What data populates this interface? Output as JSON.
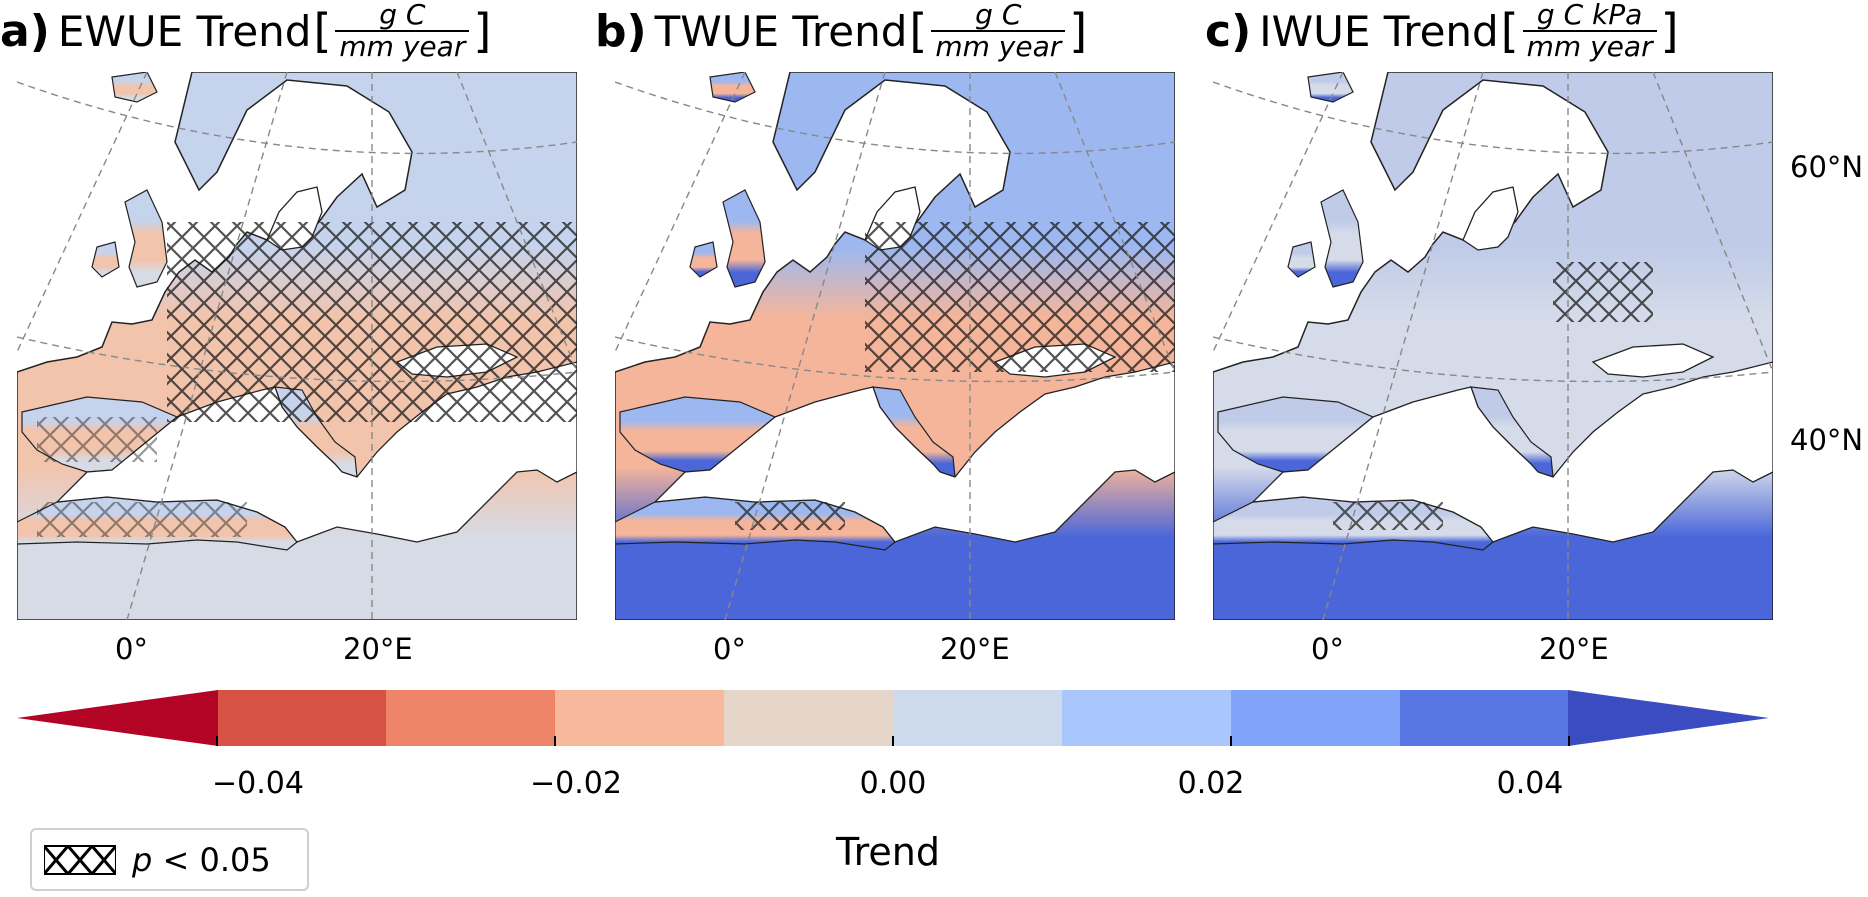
{
  "panels": [
    {
      "letter": "a)",
      "name": "EWUE Trend",
      "unit_num": "g C",
      "unit_den": "mm year"
    },
    {
      "letter": "b)",
      "name": "TWUE Trend",
      "unit_num": "g C",
      "unit_den": "mm year"
    },
    {
      "letter": "c)",
      "name": "IWUE Trend",
      "unit_num": "g C kPa",
      "unit_den": "mm year"
    }
  ],
  "map": {
    "lon_labels": [
      "0°",
      "20°E"
    ],
    "lat_labels": [
      "60°N",
      "40°N"
    ]
  },
  "colorbar": {
    "title": "Trend",
    "ticks": [
      "−0.04",
      "−0.02",
      "0.00",
      "0.02",
      "0.04"
    ],
    "tick_values": [
      -0.04,
      -0.02,
      0.0,
      0.02,
      0.04
    ],
    "range": [
      -0.05,
      0.05
    ],
    "bins": [
      -0.05,
      -0.04,
      -0.03,
      -0.02,
      -0.01,
      0.0,
      0.01,
      0.02,
      0.03,
      0.04,
      0.05
    ],
    "colors": [
      "#b40426",
      "#d65244",
      "#ee8468",
      "#f7b89c",
      "#e6d5c9",
      "#cdd9ec",
      "#aac7fd",
      "#81a4fb",
      "#5977e3",
      "#3b4cc0",
      "#3b4cc0"
    ]
  },
  "legend": {
    "symbol": "hatch-xxx-icon",
    "p_symbol": "p",
    "p_text": " < 0.05"
  }
}
